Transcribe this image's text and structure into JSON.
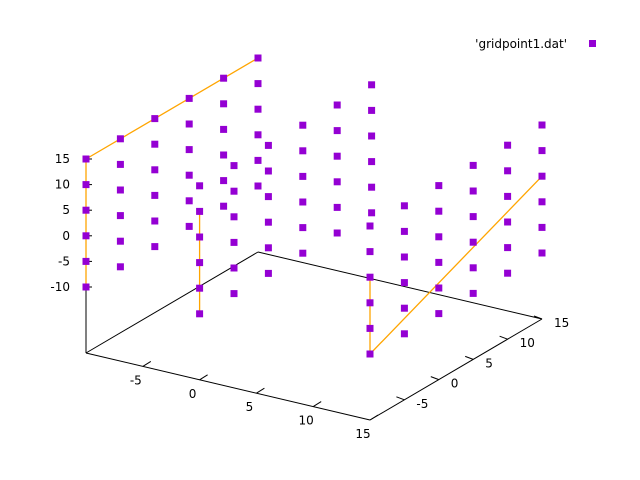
{
  "chart_data": {
    "type": "scatter",
    "subtype": "3d-scatter-with-lines",
    "legend": {
      "entries": [
        {
          "label": "'gridpoint1.dat'",
          "color": "#9400d3",
          "marker": "square"
        }
      ],
      "placement": "top-right"
    },
    "axes": {
      "x": {
        "range": [
          -10,
          15
        ],
        "ticks": [
          -5,
          0,
          5,
          10,
          15
        ]
      },
      "y": {
        "range": [
          -10,
          15
        ],
        "ticks": [
          -5,
          0,
          5,
          10,
          15
        ]
      },
      "z": {
        "range": [
          -10,
          15
        ],
        "ticks": [
          -10,
          -5,
          0,
          5,
          10,
          15
        ]
      }
    },
    "grid": false,
    "colors": {
      "points": "#9400d3",
      "lines": "#ffa500",
      "axes": "#000000"
    },
    "points": [
      [
        -10,
        -10,
        15
      ],
      [
        -10,
        -10,
        10
      ],
      [
        -10,
        -10,
        5
      ],
      [
        -10,
        -10,
        0
      ],
      [
        -10,
        -10,
        -5
      ],
      [
        -10,
        -10,
        -10
      ],
      [
        -10,
        -5,
        15
      ],
      [
        -10,
        -5,
        10
      ],
      [
        -10,
        -5,
        5
      ],
      [
        -10,
        -5,
        0
      ],
      [
        -10,
        -5,
        -5
      ],
      [
        -10,
        -5,
        -10
      ],
      [
        -10,
        0,
        15
      ],
      [
        -10,
        0,
        10
      ],
      [
        -10,
        0,
        5
      ],
      [
        -10,
        0,
        0
      ],
      [
        -10,
        0,
        -5
      ],
      [
        -10,
        0,
        -10
      ],
      [
        -10,
        5,
        15
      ],
      [
        -10,
        5,
        10
      ],
      [
        -10,
        5,
        5
      ],
      [
        -10,
        5,
        0
      ],
      [
        -10,
        5,
        -5
      ],
      [
        -10,
        5,
        -10
      ],
      [
        -10,
        10,
        15
      ],
      [
        -10,
        10,
        10
      ],
      [
        -10,
        10,
        5
      ],
      [
        -10,
        10,
        0
      ],
      [
        -10,
        10,
        -5
      ],
      [
        -10,
        10,
        -10
      ],
      [
        -10,
        15,
        15
      ],
      [
        -10,
        15,
        10
      ],
      [
        -10,
        15,
        5
      ],
      [
        -10,
        15,
        0
      ],
      [
        -10,
        15,
        -5
      ],
      [
        -10,
        15,
        -10
      ],
      [
        0,
        -10,
        15
      ],
      [
        0,
        -10,
        10
      ],
      [
        0,
        -10,
        5
      ],
      [
        0,
        -10,
        0
      ],
      [
        0,
        -10,
        -5
      ],
      [
        0,
        -10,
        -10
      ],
      [
        0,
        -5,
        15
      ],
      [
        0,
        -5,
        10
      ],
      [
        0,
        -5,
        5
      ],
      [
        0,
        -5,
        0
      ],
      [
        0,
        -5,
        -5
      ],
      [
        0,
        -5,
        -10
      ],
      [
        0,
        0,
        15
      ],
      [
        0,
        0,
        10
      ],
      [
        0,
        0,
        5
      ],
      [
        0,
        0,
        0
      ],
      [
        0,
        0,
        -5
      ],
      [
        0,
        0,
        -10
      ],
      [
        0,
        5,
        15
      ],
      [
        0,
        5,
        10
      ],
      [
        0,
        5,
        5
      ],
      [
        0,
        5,
        0
      ],
      [
        0,
        5,
        -5
      ],
      [
        0,
        5,
        -10
      ],
      [
        0,
        10,
        15
      ],
      [
        0,
        10,
        10
      ],
      [
        0,
        10,
        5
      ],
      [
        0,
        10,
        0
      ],
      [
        0,
        10,
        -5
      ],
      [
        0,
        10,
        -10
      ],
      [
        0,
        15,
        15
      ],
      [
        0,
        15,
        10
      ],
      [
        0,
        15,
        5
      ],
      [
        0,
        15,
        0
      ],
      [
        0,
        15,
        -5
      ],
      [
        0,
        15,
        -10
      ],
      [
        15,
        -10,
        15
      ],
      [
        15,
        -10,
        10
      ],
      [
        15,
        -10,
        5
      ],
      [
        15,
        -10,
        0
      ],
      [
        15,
        -10,
        -5
      ],
      [
        15,
        -10,
        -10
      ],
      [
        15,
        -5,
        15
      ],
      [
        15,
        -5,
        10
      ],
      [
        15,
        -5,
        5
      ],
      [
        15,
        -5,
        0
      ],
      [
        15,
        -5,
        -5
      ],
      [
        15,
        -5,
        -10
      ],
      [
        15,
        0,
        15
      ],
      [
        15,
        0,
        10
      ],
      [
        15,
        0,
        5
      ],
      [
        15,
        0,
        0
      ],
      [
        15,
        0,
        -5
      ],
      [
        15,
        0,
        -10
      ],
      [
        15,
        5,
        15
      ],
      [
        15,
        5,
        10
      ],
      [
        15,
        5,
        5
      ],
      [
        15,
        5,
        0
      ],
      [
        15,
        5,
        -5
      ],
      [
        15,
        5,
        -10
      ],
      [
        15,
        10,
        15
      ],
      [
        15,
        10,
        10
      ],
      [
        15,
        10,
        5
      ],
      [
        15,
        10,
        0
      ],
      [
        15,
        10,
        -5
      ],
      [
        15,
        10,
        -10
      ],
      [
        15,
        15,
        15
      ],
      [
        15,
        15,
        10
      ],
      [
        15,
        15,
        5
      ],
      [
        15,
        15,
        0
      ],
      [
        15,
        15,
        -5
      ],
      [
        15,
        15,
        -10
      ]
    ],
    "lines": [
      [
        [
          -10,
          -10,
          15
        ],
        [
          -10,
          15,
          15
        ]
      ],
      [
        [
          -10,
          -10,
          15
        ],
        [
          -10,
          -10,
          -10
        ]
      ],
      [
        [
          0,
          -10,
          10
        ],
        [
          0,
          -10,
          -10
        ]
      ],
      [
        [
          15,
          -10,
          5
        ],
        [
          15,
          -10,
          -10
        ]
      ],
      [
        [
          15,
          -10,
          -10
        ],
        [
          15,
          15,
          5
        ]
      ]
    ]
  }
}
